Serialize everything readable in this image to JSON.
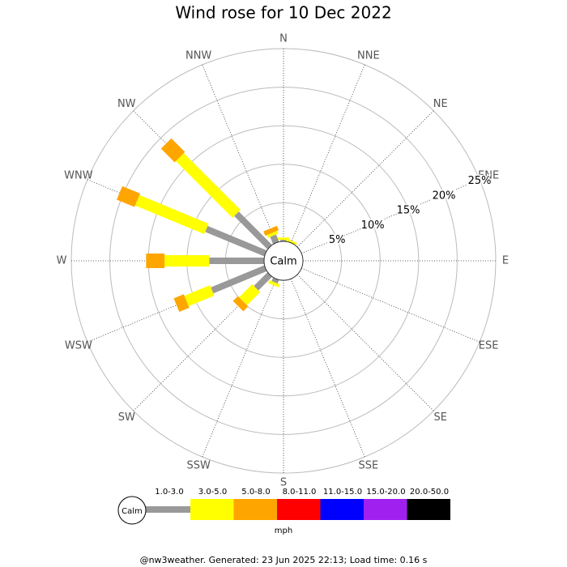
{
  "chart_data": {
    "type": "windrose",
    "title": "Wind rose for 10 Dec 2022",
    "categories": [
      "N",
      "NNE",
      "NE",
      "ENE",
      "E",
      "ESE",
      "SE",
      "SSE",
      "S",
      "SSW",
      "SW",
      "WSW",
      "W",
      "WNW",
      "NW",
      "NNW"
    ],
    "calm_label": "Calm",
    "rlim": [
      0,
      25
    ],
    "rticks": [
      {
        "value": 5,
        "label": "5%"
      },
      {
        "value": 10,
        "label": "10%"
      },
      {
        "value": 15,
        "label": "15%"
      },
      {
        "value": 20,
        "label": "20%"
      },
      {
        "value": 25,
        "label": "25%"
      }
    ],
    "series": [
      {
        "name": "1.0-3.0",
        "color": "#999999",
        "values": [
          0.2,
          0,
          0,
          0,
          0,
          0,
          0,
          0,
          0,
          0.5,
          2.5,
          7.5,
          7.1,
          8.3,
          6.1,
          1.0
        ]
      },
      {
        "name": "3.0-5.0",
        "color": "#ffff00",
        "values": [
          0.3,
          0.3,
          0,
          0,
          0,
          0,
          0,
          0,
          0,
          0.4,
          2.4,
          3.6,
          5.8,
          9.7,
          10.4,
          0.4
        ]
      },
      {
        "name": "5.0-8.0",
        "color": "#ffa500",
        "values": [
          0,
          0,
          0,
          0,
          0,
          0,
          0,
          0,
          0,
          0,
          0.9,
          1.4,
          2.4,
          2.5,
          2.5,
          0.6
        ]
      },
      {
        "name": "8.0-11.0",
        "color": "#ff0000",
        "values": [
          0,
          0,
          0,
          0,
          0,
          0,
          0,
          0,
          0,
          0,
          0,
          0,
          0,
          0,
          0,
          0
        ]
      },
      {
        "name": "11.0-15.0",
        "color": "#0000ff",
        "values": [
          0,
          0,
          0,
          0,
          0,
          0,
          0,
          0,
          0,
          0,
          0,
          0,
          0,
          0,
          0,
          0
        ]
      },
      {
        "name": "15.0-20.0",
        "color": "#a020f0",
        "values": [
          0,
          0,
          0,
          0,
          0,
          0,
          0,
          0,
          0,
          0,
          0,
          0,
          0,
          0,
          0,
          0
        ]
      },
      {
        "name": "20.0-50.0",
        "color": "#000000",
        "values": [
          0,
          0,
          0,
          0,
          0,
          0,
          0,
          0,
          0,
          0,
          0,
          0,
          0,
          0,
          0,
          0
        ]
      }
    ],
    "legend_unit": "mph",
    "footer": "@nw3weather. Generated: 23 Jun 2025 22:13; Load time: 0.16 s"
  }
}
